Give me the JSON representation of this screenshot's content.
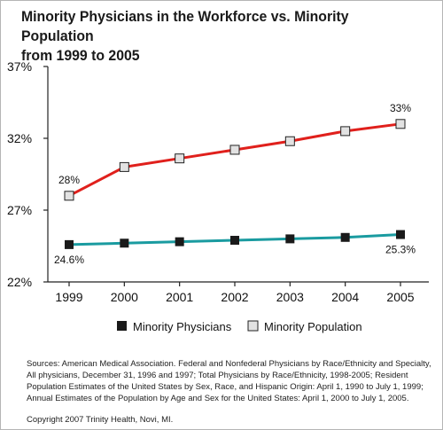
{
  "chart_data": {
    "type": "line",
    "title_line1": "Minority Physicians in the Workforce vs. Minority Population",
    "title_line2": "from 1999 to 2005",
    "x": [
      "1999",
      "2000",
      "2001",
      "2002",
      "2003",
      "2004",
      "2005"
    ],
    "ylim": [
      22,
      37
    ],
    "yticks": [
      22,
      27,
      32,
      37
    ],
    "ytick_labels": [
      "22%",
      "27%",
      "32%",
      "37%"
    ],
    "grid": false,
    "legend_position": "bottom",
    "series": [
      {
        "name": "Minority Physicians",
        "values": [
          24.6,
          24.7,
          24.8,
          24.9,
          25.0,
          25.1,
          25.3
        ],
        "line_color": "#1a9ba0",
        "marker": "filled-square",
        "marker_color": "#1a1a1a",
        "labels": [
          {
            "index": 0,
            "text": "24.6%"
          },
          {
            "index": 6,
            "text": "25.3%"
          }
        ]
      },
      {
        "name": "Minority Population",
        "values": [
          28.0,
          30.0,
          30.6,
          31.2,
          31.8,
          32.5,
          33.0
        ],
        "line_color": "#e0201c",
        "marker": "open-square",
        "marker_color": "#e2e2e2",
        "labels": [
          {
            "index": 0,
            "text": "28%"
          },
          {
            "index": 6,
            "text": "33%"
          }
        ]
      }
    ]
  },
  "footer": {
    "sources": "Sources: American Medical Association. Federal and Nonfederal Physicians by Race/Ethnicity and Specialty, All physicians, December 31, 1996 and 1997; Total Physicians by Race/Ethnicity, 1998-2005; Resident Population Estimates of the United States by Sex, Race, and Hispanic Origin: April 1, 1990 to July 1, 1999; Annual Estimates of the Population by Age and Sex for the United States: April 1, 2000 to July 1, 2005.",
    "copyright": "Copyright 2007 Trinity Health, Novi, MI."
  }
}
